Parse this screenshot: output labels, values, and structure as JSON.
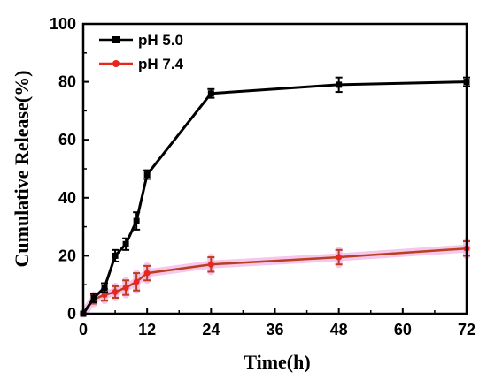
{
  "chart_data": {
    "type": "line",
    "xlabel": "Time(h)",
    "ylabel": "Cumulative  Release(%)",
    "xlim": [
      0,
      72
    ],
    "ylim": [
      0,
      100
    ],
    "xticks": [
      0,
      12,
      24,
      36,
      48,
      60,
      72
    ],
    "yticks": [
      0,
      20,
      40,
      60,
      80,
      100
    ],
    "grid": false,
    "legend_position": "top-left",
    "series": [
      {
        "name": "pH 5.0",
        "color": "#000000",
        "marker": "square",
        "x": [
          0,
          2,
          4,
          6,
          8,
          10,
          12,
          24,
          48,
          72
        ],
        "y": [
          0,
          5.5,
          9,
          20,
          24,
          32,
          48,
          76,
          79,
          80
        ],
        "err": [
          0,
          1.5,
          1.5,
          2,
          2,
          3,
          1.5,
          1.5,
          2.5,
          1.5
        ]
      },
      {
        "name": "pH 7.4",
        "color": "#e8261c",
        "marker": "circle",
        "x": [
          0,
          2,
          4,
          6,
          8,
          10,
          12,
          24,
          48,
          72
        ],
        "y": [
          0,
          5,
          6.5,
          7.5,
          9,
          11,
          14,
          17,
          19.5,
          22.5
        ],
        "err": [
          0,
          1.5,
          2,
          2,
          2.5,
          3,
          2.5,
          2.5,
          2.5,
          2.5
        ]
      }
    ]
  }
}
